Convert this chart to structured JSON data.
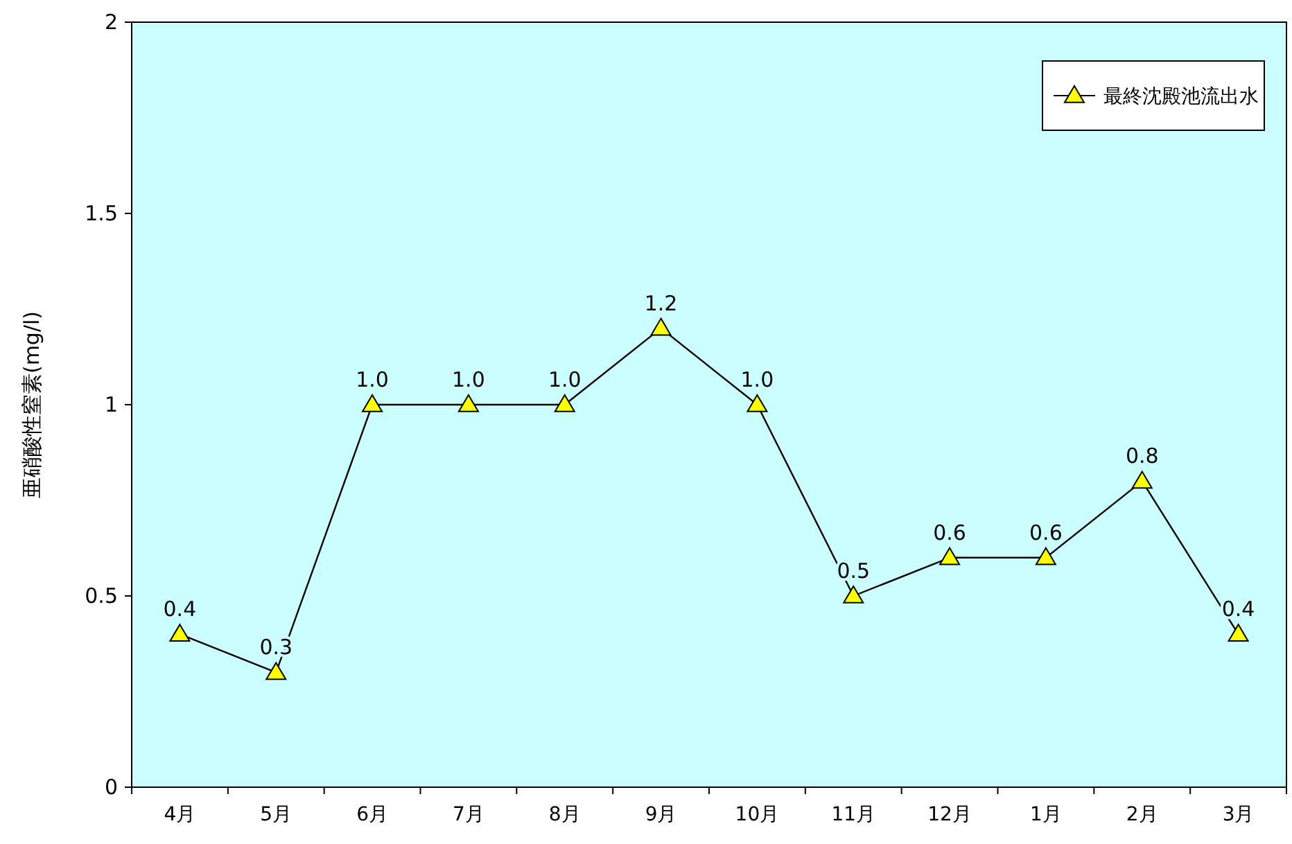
{
  "chart_data": {
    "type": "line",
    "ylabel": "亜硝酸性窒素(mg/l)",
    "categories": [
      "4月",
      "5月",
      "6月",
      "7月",
      "8月",
      "9月",
      "10月",
      "11月",
      "12月",
      "1月",
      "2月",
      "3月"
    ],
    "series": [
      {
        "name": "最終沈殿池流出水",
        "color": "#000000",
        "values": [
          0.4,
          0.3,
          1.0,
          1.0,
          1.0,
          1.2,
          1.0,
          0.5,
          0.6,
          0.6,
          0.8,
          0.4
        ],
        "value_labels": [
          "0.4",
          "0.3",
          "1.0",
          "1.0",
          "1.0",
          "1.2",
          "1.0",
          "0.5",
          "0.6",
          "0.6",
          "0.8",
          "0.4"
        ]
      }
    ],
    "ylim": [
      0,
      2
    ],
    "yticks": [
      0,
      0.5,
      1,
      1.5,
      2
    ],
    "grid": false,
    "legend": "top right",
    "marker": "triangle",
    "line_style": "solid"
  }
}
